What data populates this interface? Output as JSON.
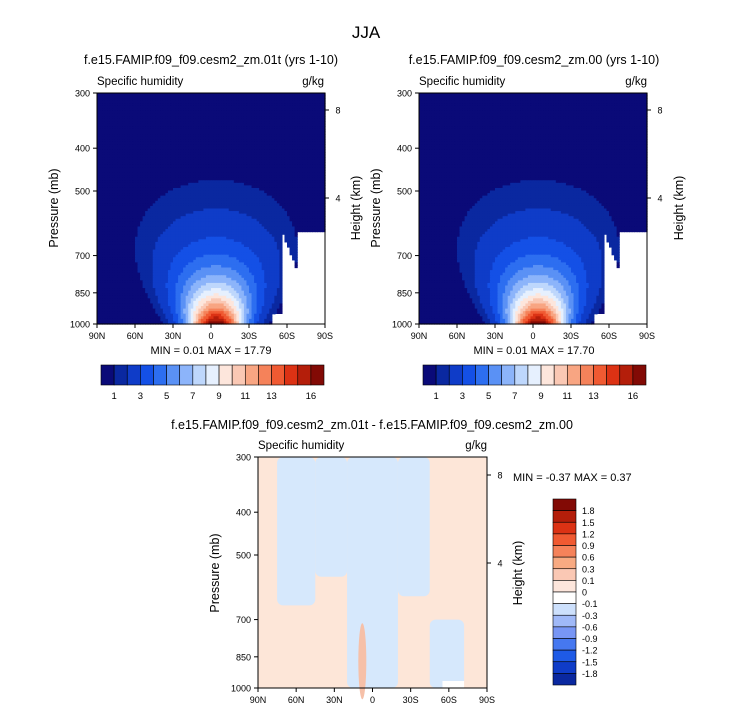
{
  "figure_title": "JJA",
  "colors": {
    "abs_levels": [
      "#0a0a78",
      "#0a28a0",
      "#0f3cc8",
      "#1450e6",
      "#2d6ef0",
      "#5a91f5",
      "#8cb4fa",
      "#bed7fc",
      "#e6f0fe",
      "#fde6dc",
      "#fac8b4",
      "#f8a582",
      "#f5825a",
      "#f05a32",
      "#dc3214",
      "#b41e0a",
      "#820a05"
    ],
    "diff_levels": [
      "#0a0a78",
      "#0a28a0",
      "#0f3cc8",
      "#1e5ae6",
      "#4678f0",
      "#7896f5",
      "#a0b9f8",
      "#cde0fc",
      "#ffffff",
      "#fde6dc",
      "#fac8b4",
      "#f8aa82",
      "#f5825a",
      "#f05a32",
      "#dc3214",
      "#b41e0a",
      "#820a05"
    ],
    "diff_positive": "#fde6d8",
    "diff_negative": "#d6e8fc",
    "missing": "#ffffff"
  },
  "chart_data": [
    {
      "type": "heatmap",
      "title": "f.e15.FAMIP.f09_f09.cesm2_zm.01t (yrs 1-10)",
      "left_label": "Specific humidity",
      "right_label": "g/kg",
      "ylabel": "Pressure (mb)",
      "ylabel_right": "Height (km)",
      "x_ticks": [
        "90N",
        "60N",
        "30N",
        "0",
        "30S",
        "60S",
        "90S"
      ],
      "y_ticks": [
        "300",
        "400",
        "500",
        "700",
        "850",
        "1000"
      ],
      "y_right_ticks": [
        "8",
        "4"
      ],
      "xlim": [
        90,
        -90
      ],
      "ylim": [
        1000,
        300
      ],
      "min_max": "MIN =  0.01  MAX = 17.79",
      "peak_lat": 0,
      "peak_value": 17.79,
      "surface_value": 16.5,
      "scale_height_km": 1.5,
      "lat_width_deg": 22,
      "south_cutoff_lat": -55,
      "colorbar_labels": [
        "1",
        "3",
        "5",
        "7",
        "9",
        "11",
        "13",
        "16"
      ]
    },
    {
      "type": "heatmap",
      "title": "f.e15.FAMIP.f09_f09.cesm2_zm.00 (yrs 1-10)",
      "left_label": "Specific humidity",
      "right_label": "g/kg",
      "ylabel": "Pressure (mb)",
      "ylabel_right": "Height (km)",
      "x_ticks": [
        "90N",
        "60N",
        "30N",
        "0",
        "30S",
        "60S",
        "90S"
      ],
      "y_ticks": [
        "300",
        "400",
        "500",
        "700",
        "850",
        "1000"
      ],
      "y_right_ticks": [
        "8",
        "4"
      ],
      "xlim": [
        90,
        -90
      ],
      "ylim": [
        1000,
        300
      ],
      "min_max": "MIN =  0.01  MAX = 17.70",
      "peak_lat": 0,
      "peak_value": 17.7,
      "surface_value": 16.5,
      "scale_height_km": 1.5,
      "lat_width_deg": 22,
      "south_cutoff_lat": -55,
      "colorbar_labels": [
        "1",
        "3",
        "5",
        "7",
        "9",
        "11",
        "13",
        "16"
      ]
    },
    {
      "type": "heatmap",
      "title": "f.e15.FAMIP.f09_f09.cesm2_zm.01t - f.e15.FAMIP.f09_f09.cesm2_zm.00",
      "left_label": "Specific humidity",
      "right_label": "g/kg",
      "ylabel": "Pressure (mb)",
      "ylabel_right": "Height (km)",
      "x_ticks": [
        "90N",
        "60N",
        "30N",
        "0",
        "30S",
        "60S",
        "90S"
      ],
      "y_ticks": [
        "300",
        "400",
        "500",
        "700",
        "850",
        "1000"
      ],
      "y_right_ticks": [
        "8",
        "4"
      ],
      "xlim": [
        90,
        -90
      ],
      "ylim": [
        1000,
        300
      ],
      "min_max": "MIN = -0.37  MAX =  0.37",
      "negative_regions": [
        {
          "lat_from": 75,
          "lat_to": 45,
          "p_from": 300,
          "p_to": 650
        },
        {
          "lat_from": 45,
          "lat_to": 20,
          "p_from": 300,
          "p_to": 560
        },
        {
          "lat_from": 20,
          "lat_to": -20,
          "p_from": 300,
          "p_to": 1000
        },
        {
          "lat_from": -20,
          "lat_to": -45,
          "p_from": 300,
          "p_to": 620
        },
        {
          "lat_from": -45,
          "lat_to": -72,
          "p_from": 700,
          "p_to": 1000
        }
      ],
      "colorbar_labels": [
        "1.8",
        "1.5",
        "1.2",
        "0.9",
        "0.6",
        "0.3",
        "0.1",
        "0",
        "-0.1",
        "-0.3",
        "-0.6",
        "-0.9",
        "-1.2",
        "-1.5",
        "-1.8"
      ]
    }
  ]
}
